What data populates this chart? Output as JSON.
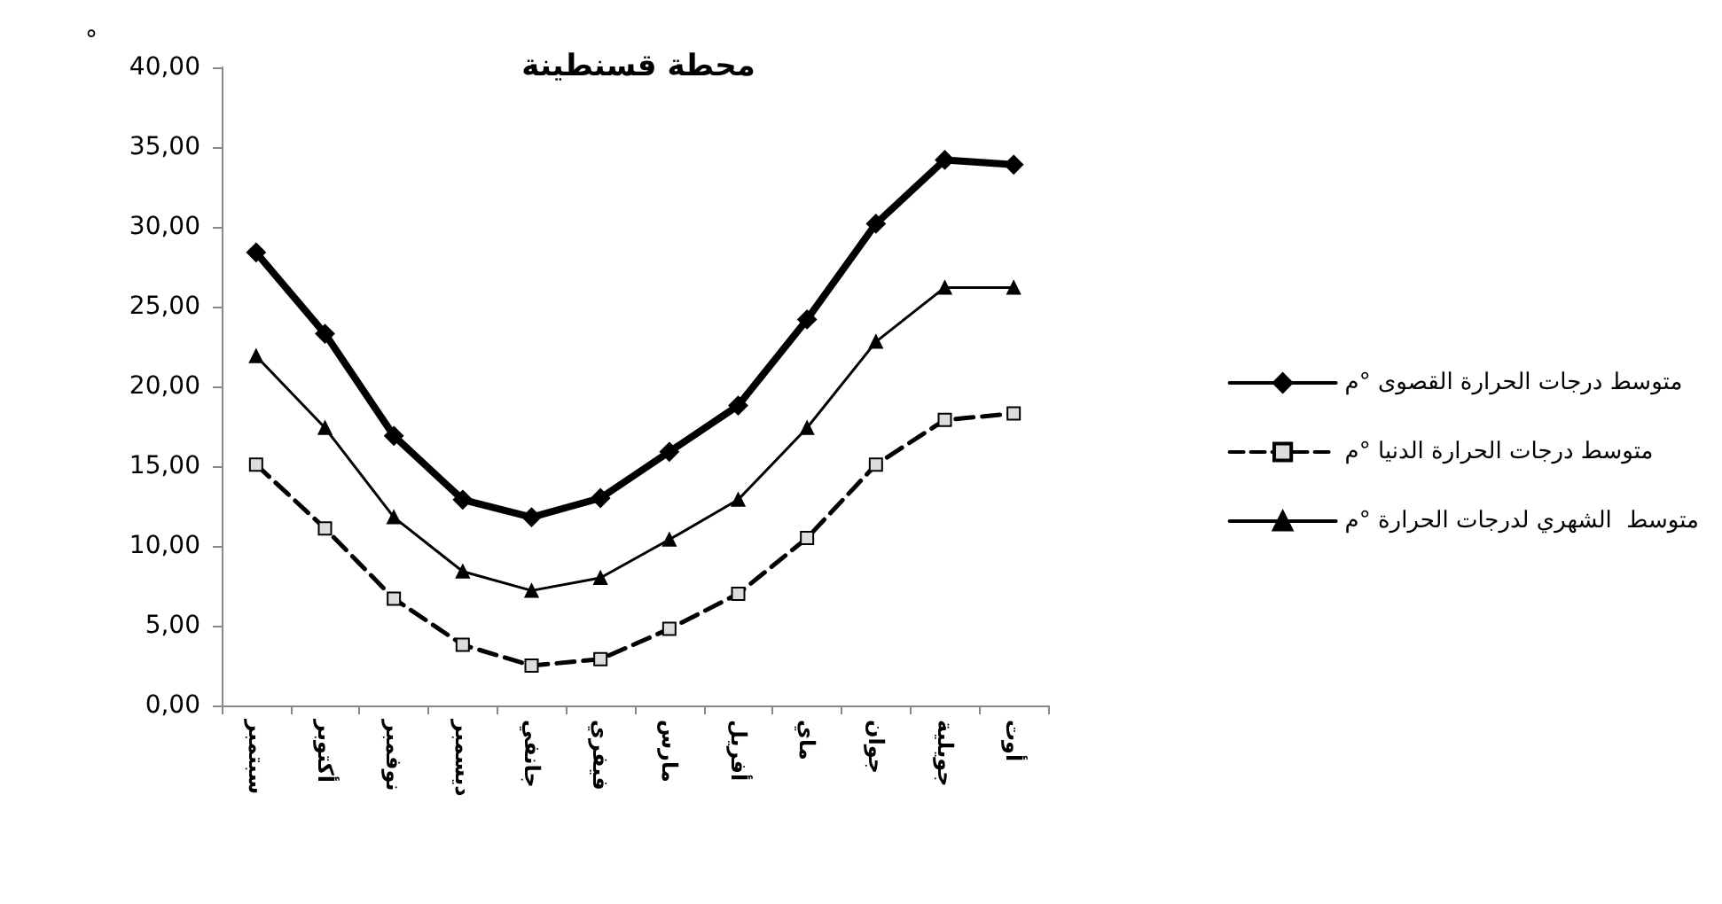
{
  "chart_data": {
    "type": "line",
    "title": "محطة قسنطينة",
    "ylabel": "°",
    "categories": [
      "سبتمبر",
      "أكتوبر",
      "نوفمبر",
      "ديسمبر",
      "جانفي",
      "فيفري",
      "مارس",
      "أفريل",
      "ماي",
      "جوان",
      "جويلية",
      "أوت"
    ],
    "series": [
      {
        "name": "متوسط درجات الحرارة القصوى °م",
        "color": "#000000",
        "marker": "diamond",
        "line_style": "solid",
        "values": [
          28.4,
          23.3,
          16.9,
          12.9,
          11.8,
          13.0,
          15.9,
          18.8,
          24.2,
          30.2,
          34.2,
          33.9
        ]
      },
      {
        "name": "متوسط درجات الحرارة الدنيا °م",
        "color": "#000000",
        "marker": "square",
        "line_style": "dashed",
        "values": [
          15.1,
          11.1,
          6.7,
          3.8,
          2.5,
          2.9,
          4.8,
          7.0,
          10.5,
          15.1,
          17.9,
          18.3
        ]
      },
      {
        "name": "متوسط  الشهري لدرجات الحرارة °م",
        "color": "#000000",
        "marker": "triangle",
        "line_style": "solid",
        "values": [
          21.9,
          17.4,
          11.8,
          8.4,
          7.2,
          8.0,
          10.4,
          12.9,
          17.4,
          22.8,
          26.2,
          26.2
        ]
      }
    ],
    "ylim": [
      0,
      40
    ],
    "yticks": [
      {
        "value": 0,
        "label": "0,00"
      },
      {
        "value": 5,
        "label": "5,00"
      },
      {
        "value": 10,
        "label": "10,00"
      },
      {
        "value": 15,
        "label": "15,00"
      },
      {
        "value": 20,
        "label": "20,00"
      },
      {
        "value": 25,
        "label": "25,00"
      },
      {
        "value": 30,
        "label": "30,00"
      },
      {
        "value": 35,
        "label": "35,00"
      },
      {
        "value": 40,
        "label": "40,00"
      }
    ],
    "grid": false,
    "legend": "right"
  }
}
